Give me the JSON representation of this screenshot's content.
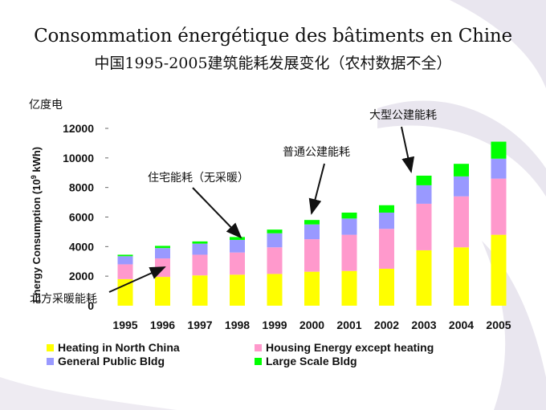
{
  "title_fr": "Consommation énergétique des bâtiments en Chine",
  "title_cn": "中国1995-2005建筑能耗发展变化（农村数据不全）",
  "unit_label": "亿度电",
  "colors": {
    "heating": "#ffff00",
    "housing": "#ff99cc",
    "public": "#9999ff",
    "large": "#00ff00",
    "decor": "#e9e6ef"
  },
  "chart_data": {
    "type": "bar",
    "stacked": true,
    "ylabel_main": "Energy Consumption (10",
    "ylabel_exp": "9",
    "ylabel_tail": " kWh)",
    "ylim": [
      0,
      12000
    ],
    "yticks": [
      {
        "value": 0,
        "label": "0"
      },
      {
        "value": 2000,
        "label": "2000"
      },
      {
        "value": 4000,
        "label": "4000"
      },
      {
        "value": 6000,
        "label": "6000"
      },
      {
        "value": 8000,
        "label": "8000"
      },
      {
        "value": 10000,
        "label": "10000"
      },
      {
        "value": 12000,
        "label": "12000"
      }
    ],
    "categories": [
      "1995",
      "1996",
      "1997",
      "1998",
      "1999",
      "2000",
      "2001",
      "2002",
      "2003",
      "2004",
      "2005"
    ],
    "series": [
      {
        "name": "Heating in North China",
        "color_key": "heating",
        "values": [
          1800,
          1950,
          2050,
          2100,
          2150,
          2300,
          2350,
          2500,
          3750,
          3950,
          4800
        ]
      },
      {
        "name": "Housing Energy except heating",
        "color_key": "housing",
        "values": [
          1000,
          1250,
          1400,
          1500,
          1800,
          2200,
          2450,
          2700,
          3150,
          3450,
          3800
        ]
      },
      {
        "name": "General Public Bldg",
        "color_key": "public",
        "values": [
          550,
          700,
          750,
          850,
          950,
          1000,
          1100,
          1100,
          1250,
          1350,
          1350
        ]
      },
      {
        "name": "Large Scale Bldg",
        "color_key": "large",
        "values": [
          100,
          150,
          150,
          200,
          250,
          300,
          400,
          500,
          650,
          850,
          1150
        ]
      }
    ],
    "legend_position": "bottom",
    "annotations": [
      {
        "text": "大型公建能耗",
        "target_category": "2003"
      },
      {
        "text": "普通公建能耗",
        "target_category": "2000"
      },
      {
        "text": "住宅能耗（无采暖）",
        "target_category": "1998"
      },
      {
        "text": "北方采暖能耗",
        "target_category": "1996"
      }
    ]
  }
}
